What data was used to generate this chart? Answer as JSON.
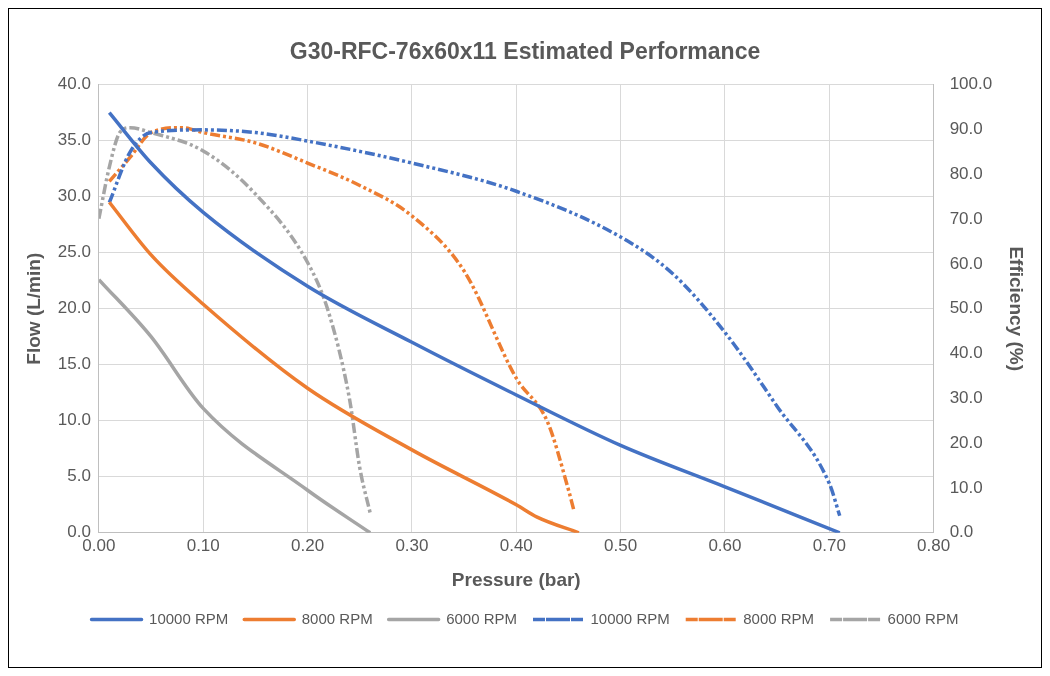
{
  "chart_data": {
    "type": "line",
    "title": "G30-RFC-76x60x11 Estimated Performance",
    "xlabel": "Pressure (bar)",
    "ylabel": "Flow (L/min)",
    "y2label": "Efficiency (%)",
    "xlim": [
      0,
      0.8
    ],
    "xticks": [
      {
        "value": 0,
        "label": "0.00"
      },
      {
        "value": 0.1,
        "label": "0.10"
      },
      {
        "value": 0.2,
        "label": "0.20"
      },
      {
        "value": 0.3,
        "label": "0.30"
      },
      {
        "value": 0.4,
        "label": "0.40"
      },
      {
        "value": 0.5,
        "label": "0.50"
      },
      {
        "value": 0.6,
        "label": "0.60"
      },
      {
        "value": 0.7,
        "label": "0.70"
      },
      {
        "value": 0.8,
        "label": "0.80"
      }
    ],
    "ylim": [
      0,
      40
    ],
    "yticks": [
      {
        "value": 0,
        "label": "0.0"
      },
      {
        "value": 5,
        "label": "5.0"
      },
      {
        "value": 10,
        "label": "10.0"
      },
      {
        "value": 15,
        "label": "15.0"
      },
      {
        "value": 20,
        "label": "20.0"
      },
      {
        "value": 25,
        "label": "25.0"
      },
      {
        "value": 30,
        "label": "30.0"
      },
      {
        "value": 35,
        "label": "35.0"
      },
      {
        "value": 40,
        "label": "40.0"
      }
    ],
    "y2lim": [
      0,
      100
    ],
    "y2ticks": [
      {
        "value": 0,
        "label": "0.0"
      },
      {
        "value": 10,
        "label": "10.0"
      },
      {
        "value": 20,
        "label": "20.0"
      },
      {
        "value": 30,
        "label": "30.0"
      },
      {
        "value": 40,
        "label": "40.0"
      },
      {
        "value": 50,
        "label": "50.0"
      },
      {
        "value": 60,
        "label": "60.0"
      },
      {
        "value": 70,
        "label": "70.0"
      },
      {
        "value": 80,
        "label": "80.0"
      },
      {
        "value": 90,
        "label": "90.0"
      },
      {
        "value": 100,
        "label": "100.0"
      }
    ],
    "grid": true,
    "legend": "bottom",
    "marker": "none",
    "series": [
      {
        "name": "10000 RPM",
        "color": "#4472c4",
        "line_style": "solid",
        "x": [
          0.01,
          0.05,
          0.1,
          0.2,
          0.3,
          0.4,
          0.5,
          0.6,
          0.71
        ],
        "values": [
          37.5,
          33.0,
          28.6,
          22.0,
          17.0,
          12.3,
          7.8,
          4.1,
          0
        ]
      },
      {
        "name": "8000 RPM",
        "color": "#ed7d31",
        "line_style": "solid",
        "x": [
          0.01,
          0.05,
          0.1,
          0.2,
          0.3,
          0.4,
          0.42,
          0.46
        ],
        "values": [
          29.5,
          24.8,
          20.4,
          12.9,
          7.4,
          2.5,
          1.4,
          0
        ]
      },
      {
        "name": "6000 RPM",
        "color": "#a5a5a5",
        "line_style": "solid",
        "x": [
          0,
          0.05,
          0.1,
          0.2,
          0.26
        ],
        "values": [
          22.6,
          17.5,
          11.1,
          3.8,
          0
        ]
      },
      {
        "name": "10000 RPM",
        "color": "#4472c4",
        "line_style": "dashed",
        "axis": "y2",
        "x": [
          0.01,
          0.03,
          0.05,
          0.1,
          0.15,
          0.2,
          0.3,
          0.4,
          0.5,
          0.55,
          0.6,
          0.65,
          0.7,
          0.71
        ],
        "values": [
          73.7,
          85,
          89.3,
          89.9,
          89.3,
          87.4,
          82.5,
          76.2,
          66,
          57.8,
          44.7,
          28.2,
          11,
          3.8
        ]
      },
      {
        "name": "8000 RPM",
        "color": "#ed7d31",
        "line_style": "dashed",
        "axis": "y2",
        "x": [
          0.01,
          0.03,
          0.05,
          0.08,
          0.1,
          0.15,
          0.2,
          0.25,
          0.3,
          0.35,
          0.4,
          0.43,
          0.45,
          0.455
        ],
        "values": [
          78.4,
          83.8,
          89.3,
          90.4,
          89.3,
          87,
          82.5,
          77.5,
          70.7,
          58.4,
          34.5,
          24.7,
          9.6,
          5.2
        ]
      },
      {
        "name": "6000 RPM",
        "color": "#a5a5a5",
        "line_style": "dashed",
        "axis": "y2",
        "x": [
          0,
          0.01,
          0.02,
          0.03,
          0.05,
          0.1,
          0.15,
          0.2,
          0.22,
          0.24,
          0.25,
          0.26
        ],
        "values": [
          70.1,
          81.6,
          89.3,
          90.4,
          89.3,
          85.2,
          75.6,
          60.3,
          49.3,
          30.1,
          14.5,
          4.4
        ]
      }
    ]
  }
}
